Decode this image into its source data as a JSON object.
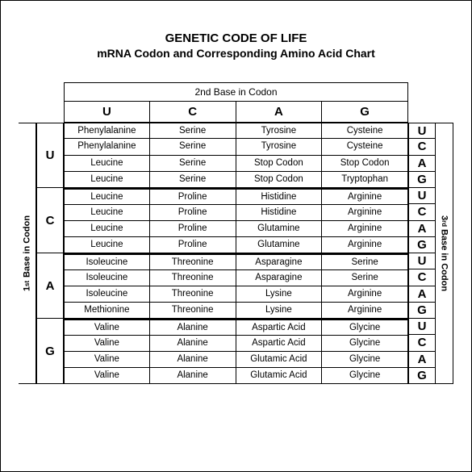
{
  "title": {
    "line1": "GENETIC CODE OF LIFE",
    "line2": "mRNA Codon and Corresponding Amino Acid Chart"
  },
  "headers": {
    "top": "2nd Base in Codon",
    "left": "1st Base in Codon",
    "right": "3rd Base in Codon",
    "bases": [
      "U",
      "C",
      "A",
      "G"
    ]
  },
  "firstBases": [
    "U",
    "C",
    "A",
    "G"
  ],
  "thirdBases": [
    "U",
    "C",
    "A",
    "G",
    "U",
    "C",
    "A",
    "G",
    "U",
    "C",
    "A",
    "G",
    "U",
    "C",
    "A",
    "G"
  ],
  "groups": [
    [
      [
        "Phenylalanine",
        "Serine",
        "Tyrosine",
        "Cysteine"
      ],
      [
        "Phenylalanine",
        "Serine",
        "Tyrosine",
        "Cysteine"
      ],
      [
        "Leucine",
        "Serine",
        "Stop Codon",
        "Stop Codon"
      ],
      [
        "Leucine",
        "Serine",
        "Stop Codon",
        "Tryptophan"
      ]
    ],
    [
      [
        "Leucine",
        "Proline",
        "Histidine",
        "Arginine"
      ],
      [
        "Leucine",
        "Proline",
        "Histidine",
        "Arginine"
      ],
      [
        "Leucine",
        "Proline",
        "Glutamine",
        "Arginine"
      ],
      [
        "Leucine",
        "Proline",
        "Glutamine",
        "Arginine"
      ]
    ],
    [
      [
        "Isoleucine",
        "Threonine",
        "Asparagine",
        "Serine"
      ],
      [
        "Isoleucine",
        "Threonine",
        "Asparagine",
        "Serine"
      ],
      [
        "Isoleucine",
        "Threonine",
        "Lysine",
        "Arginine"
      ],
      [
        "Methionine",
        "Threonine",
        "Lysine",
        "Arginine"
      ]
    ],
    [
      [
        "Valine",
        "Alanine",
        "Aspartic Acid",
        "Glycine"
      ],
      [
        "Valine",
        "Alanine",
        "Aspartic Acid",
        "Glycine"
      ],
      [
        "Valine",
        "Alanine",
        "Glutamic Acid",
        "Glycine"
      ],
      [
        "Valine",
        "Alanine",
        "Glutamic Acid",
        "Glycine"
      ]
    ]
  ]
}
